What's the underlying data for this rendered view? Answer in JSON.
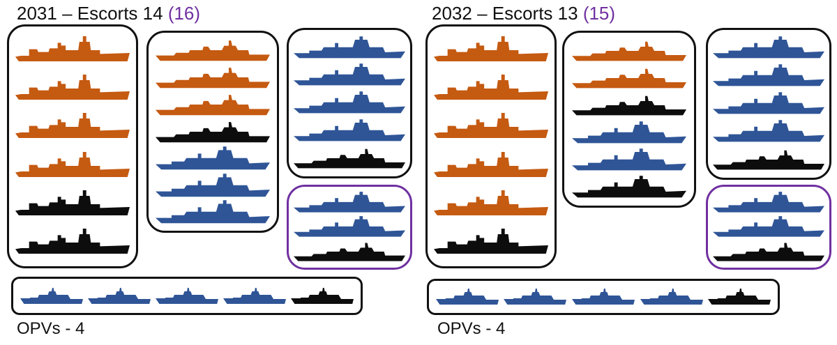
{
  "colors": {
    "orange": "#c55a11",
    "blue": "#2f5597",
    "black": "#0d0d0d",
    "purple": "#7030a0",
    "border": "#111111"
  },
  "panels": [
    {
      "title_main": "2031 – Escorts 14",
      "title_extra": "(16)",
      "opv_label": "OPVs - 4",
      "groups": [
        {
          "kind": "destroyers",
          "ships": [
            "orange",
            "orange",
            "orange",
            "orange",
            "black",
            "black"
          ]
        },
        {
          "kind": "frigates-mixed",
          "ships": [
            "orange",
            "orange",
            "orange",
            "black",
            "blue",
            "blue",
            "blue"
          ]
        },
        {
          "kind": "frigates",
          "ships": [
            "blue",
            "blue",
            "blue",
            "blue",
            "black"
          ]
        },
        {
          "kind": "reserve",
          "ships": [
            "blue",
            "blue",
            "black"
          ]
        },
        {
          "kind": "opv",
          "ships": [
            "blue",
            "blue",
            "blue",
            "blue",
            "black"
          ]
        }
      ]
    },
    {
      "title_main": "2032 – Escorts 13",
      "title_extra": "(15)",
      "opv_label": "OPVs - 4",
      "groups": [
        {
          "kind": "destroyers",
          "ships": [
            "orange",
            "orange",
            "orange",
            "orange",
            "orange",
            "black"
          ]
        },
        {
          "kind": "frigates-mixed",
          "ships": [
            "orange",
            "orange",
            "black",
            "blue",
            "blue",
            "black"
          ]
        },
        {
          "kind": "frigates",
          "ships": [
            "blue",
            "blue",
            "blue",
            "blue",
            "black"
          ]
        },
        {
          "kind": "reserve",
          "ships": [
            "blue",
            "blue",
            "black"
          ]
        },
        {
          "kind": "opv",
          "ships": [
            "blue",
            "blue",
            "blue",
            "blue",
            "black"
          ]
        }
      ]
    }
  ]
}
